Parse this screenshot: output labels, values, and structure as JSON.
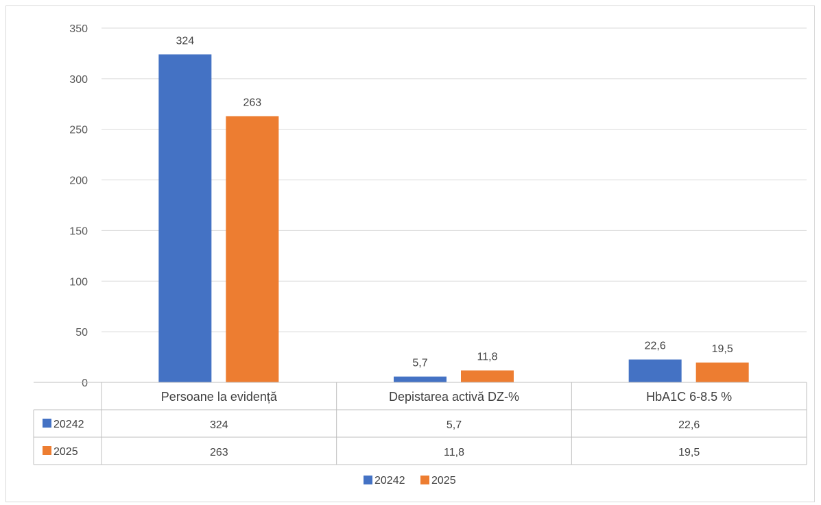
{
  "chart_data": {
    "type": "bar",
    "categories": [
      "Persoane la evidență",
      "Depistarea activă DZ-%",
      "HbA1C 6-8.5 %"
    ],
    "series": [
      {
        "name": "20242",
        "values": [
          324,
          5.7,
          22.6
        ],
        "labels": [
          "324",
          "5,7",
          "22,6"
        ],
        "color": "#4472C4"
      },
      {
        "name": "2025",
        "values": [
          263,
          11.8,
          19.5
        ],
        "labels": [
          "263",
          "11,8",
          "19,5"
        ],
        "color": "#ED7D31"
      }
    ],
    "ylim": [
      0,
      350
    ],
    "yticks": [
      0,
      50,
      100,
      150,
      200,
      250,
      300,
      350
    ],
    "grid": true,
    "legend": "bottom",
    "data_table": true
  }
}
